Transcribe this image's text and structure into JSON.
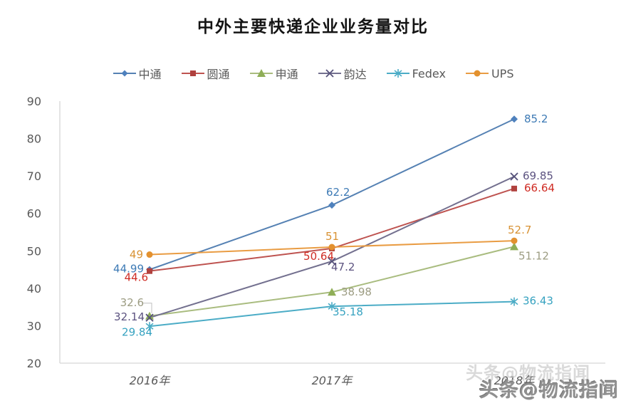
{
  "title": "中外主要快递企业业务量对比",
  "watermark": {
    "text": "头条@物流指闻",
    "ghost_text": "头条@物流指闻"
  },
  "chart_data": {
    "type": "line",
    "title": "中外主要快递企业业务量对比",
    "categories": [
      "2016年",
      "2017年",
      "2018年"
    ],
    "series": [
      {
        "key": "zto",
        "name": "中通",
        "color": "#5581B3",
        "marker": "diamond",
        "marker_color": "#4F81BD",
        "label_color": "#3D7AB5",
        "values": [
          44.99,
          62.2,
          85.2
        ]
      },
      {
        "key": "yto",
        "name": "圆通",
        "color": "#BE5350",
        "marker": "square",
        "marker_color": "#B0413E",
        "label_color": "#CF2B23",
        "values": [
          44.6,
          50.64,
          66.64
        ]
      },
      {
        "key": "sto",
        "name": "申通",
        "color": "#A9BC7F",
        "marker": "triangle",
        "marker_color": "#8FAE57",
        "label_color": "#9C9C82",
        "values": [
          32.6,
          38.98,
          51.12
        ]
      },
      {
        "key": "yunda",
        "name": "韵达",
        "color": "#73708F",
        "marker": "x",
        "marker_color": "#56527A",
        "label_color": "#5C5380",
        "values": [
          32.14,
          47.2,
          69.85
        ]
      },
      {
        "key": "fedex",
        "name": "Fedex",
        "color": "#4BACC6",
        "marker": "asterisk",
        "marker_color": "#4BACC6",
        "label_color": "#36A2C0",
        "values": [
          29.84,
          35.18,
          36.43
        ]
      },
      {
        "key": "ups",
        "name": "UPS",
        "color": "#E99C43",
        "marker": "circle",
        "marker_color": "#E3912F",
        "label_color": "#D89234",
        "values": [
          49,
          51,
          52.7
        ]
      }
    ],
    "ylim": [
      20,
      90
    ],
    "yticks": [
      90,
      80,
      70,
      60,
      50,
      40,
      30,
      20
    ],
    "grid": false,
    "legend_position": "top",
    "axis_color": "#D6D6D6",
    "label_layout": {
      "zto": [
        [
          -8,
          4,
          "end"
        ],
        [
          -8,
          -13,
          "start"
        ],
        [
          14,
          5,
          "start"
        ]
      ],
      "yto": [
        [
          -2,
          14,
          "end"
        ],
        [
          3,
          16,
          "end"
        ],
        [
          14,
          4,
          "start"
        ]
      ],
      "sto": [
        [
          -8,
          -14,
          "end",
          "leader"
        ],
        [
          13,
          5,
          "start"
        ],
        [
          6,
          18,
          "start"
        ]
      ],
      "yunda": [
        [
          -7,
          4,
          "end"
        ],
        [
          -1,
          13,
          "start"
        ],
        [
          12,
          4,
          "start"
        ]
      ],
      "fedex": [
        [
          4,
          13,
          "end"
        ],
        [
          1,
          13,
          "start"
        ],
        [
          12,
          4,
          "start"
        ]
      ],
      "ups": [
        [
          -9,
          5,
          "end"
        ],
        [
          -9,
          -10,
          "start"
        ],
        [
          -9,
          -10,
          "start"
        ]
      ]
    }
  }
}
